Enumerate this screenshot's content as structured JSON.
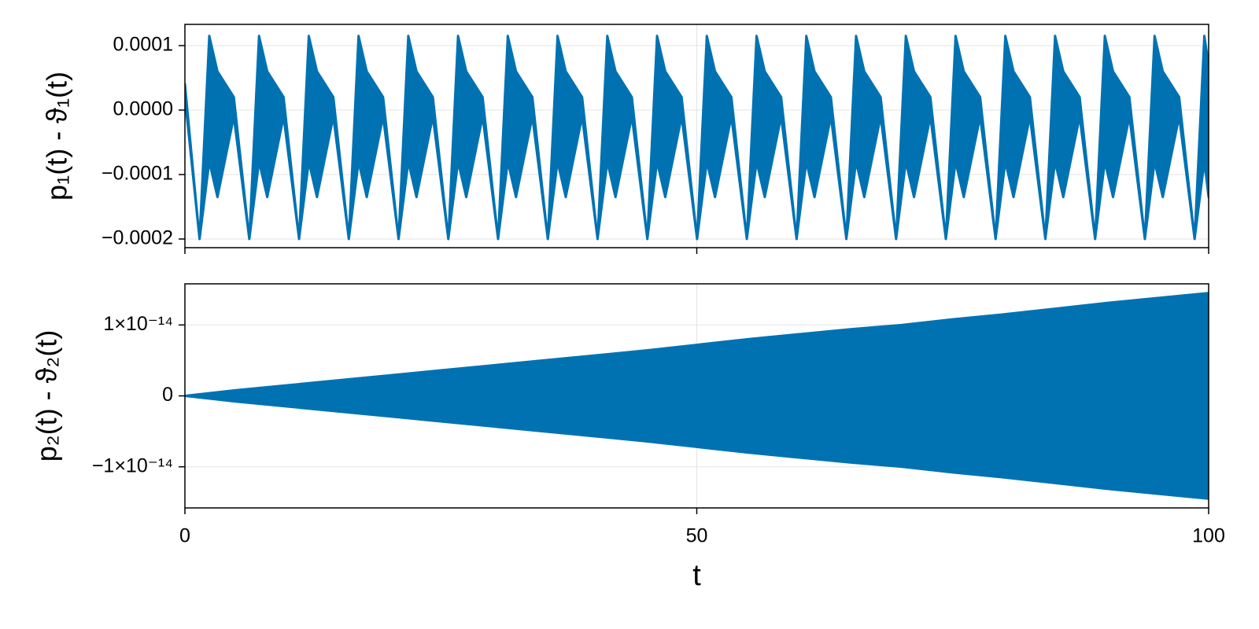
{
  "chart_data": [
    {
      "type": "band",
      "y_label": "p₁(t) - ϑ₁(t)",
      "x": [
        0,
        1.43,
        2.38,
        3.18,
        4.78,
        6.29,
        7.24,
        8.04,
        9.64,
        11.15,
        12.1,
        12.9,
        14.5,
        16.01,
        16.96,
        17.76,
        19.36,
        20.87,
        21.82,
        22.62,
        24.22,
        25.73,
        26.68,
        27.48,
        29.08,
        30.59,
        31.54,
        32.34,
        33.94,
        35.45,
        36.4,
        37.2,
        38.8,
        40.31,
        41.26,
        42.06,
        43.66,
        45.17,
        46.12,
        46.92,
        48.52,
        50.03,
        50.98,
        51.78,
        53.38,
        54.89,
        55.84,
        56.64,
        58.24,
        59.75,
        60.7,
        61.5,
        63.1,
        64.61,
        65.56,
        66.36,
        67.96,
        69.47,
        70.42,
        71.22,
        72.82,
        74.33,
        75.28,
        76.08,
        77.68,
        79.19,
        80.14,
        80.94,
        82.54,
        84.05,
        85.0,
        85.8,
        87.4,
        88.91,
        89.86,
        90.66,
        92.26,
        93.77,
        94.72,
        95.52,
        97.12,
        98.63,
        99.58,
        100
      ],
      "series": [
        {
          "color": "#0072b2",
          "values": [
            4e-05,
            -0.0002,
            0.000115,
            6e-05,
            2e-05,
            -0.0002,
            0.000115,
            6e-05,
            2e-05,
            -0.0002,
            0.000115,
            6e-05,
            2e-05,
            -0.0002,
            0.000115,
            6e-05,
            2e-05,
            -0.0002,
            0.000115,
            6e-05,
            2e-05,
            -0.0002,
            0.000115,
            6e-05,
            2e-05,
            -0.0002,
            0.000115,
            6e-05,
            2e-05,
            -0.0002,
            0.000115,
            6e-05,
            2e-05,
            -0.0002,
            0.000115,
            6e-05,
            2e-05,
            -0.0002,
            0.000115,
            6e-05,
            2e-05,
            -0.0002,
            0.000115,
            6e-05,
            2e-05,
            -0.0002,
            0.000115,
            6e-05,
            2e-05,
            -0.0002,
            0.000115,
            6e-05,
            2e-05,
            -0.0002,
            0.000115,
            6e-05,
            2e-05,
            -0.0002,
            0.000115,
            6e-05,
            2e-05,
            -0.0002,
            0.000115,
            6e-05,
            2e-05,
            -0.0002,
            0.000115,
            6e-05,
            2e-05,
            -0.0002,
            0.000115,
            6e-05,
            2e-05,
            -0.0002,
            0.000115,
            6e-05,
            2e-05,
            -0.0002,
            0.000115,
            6e-05,
            2e-05,
            -0.0002,
            0.000115,
            7e-05
          ]
        },
        {
          "color": "#0072b2",
          "values": [
            2e-05,
            -0.0002,
            -8e-05,
            -0.000135,
            -1e-05,
            -0.0002,
            -8e-05,
            -0.000135,
            -1e-05,
            -0.0002,
            -8e-05,
            -0.000135,
            -1e-05,
            -0.0002,
            -8e-05,
            -0.000135,
            -1e-05,
            -0.0002,
            -8e-05,
            -0.000135,
            -1e-05,
            -0.0002,
            -8e-05,
            -0.000135,
            -1e-05,
            -0.0002,
            -8e-05,
            -0.000135,
            -1e-05,
            -0.0002,
            -8e-05,
            -0.000135,
            -1e-05,
            -0.0002,
            -8e-05,
            -0.000135,
            -1e-05,
            -0.0002,
            -8e-05,
            -0.000135,
            -1e-05,
            -0.0002,
            -8e-05,
            -0.000135,
            -1e-05,
            -0.0002,
            -8e-05,
            -0.000135,
            -1e-05,
            -0.0002,
            -8e-05,
            -0.000135,
            -1e-05,
            -0.0002,
            -8e-05,
            -0.000135,
            -1e-05,
            -0.0002,
            -8e-05,
            -0.000135,
            -1e-05,
            -0.0002,
            -8e-05,
            -0.000135,
            -1e-05,
            -0.0002,
            -8e-05,
            -0.000135,
            -1e-05,
            -0.0002,
            -8e-05,
            -0.000135,
            -1e-05,
            -0.0002,
            -8e-05,
            -0.000135,
            -1e-05,
            -0.0002,
            -8e-05,
            -0.000135,
            -1e-05,
            -0.0002,
            -8e-05,
            -0.000135
          ]
        }
      ],
      "xlim": [
        0,
        100
      ],
      "xticks": [
        0,
        50,
        100
      ],
      "ylim": [
        -0.0002134,
        0.0001329
      ],
      "yticks": [
        {
          "value": -0.0002,
          "label": "−0.0002"
        },
        {
          "value": -0.0001,
          "label": "−0.0001"
        },
        {
          "value": 0,
          "label": "0.0000"
        },
        {
          "value": 0.0001,
          "label": "0.0001"
        }
      ],
      "grid": true
    },
    {
      "type": "band",
      "y_label": "p₂(t) - ϑ₂(t)",
      "x_label": "t",
      "x": [
        0,
        5,
        10,
        15,
        20,
        25,
        30,
        35,
        40,
        45,
        50,
        55,
        60,
        65,
        70,
        75,
        80,
        85,
        90,
        95,
        100
      ],
      "series": [
        {
          "color": "#0072b2",
          "values": [
            0,
            8e-16,
            1.5e-15,
            2.2e-15,
            2.9e-15,
            3.6e-15,
            4.3e-15,
            5e-15,
            5.7e-15,
            6.4e-15,
            7.2e-15,
            8e-15,
            8.7e-15,
            9.4e-15,
            1e-14,
            1.08e-14,
            1.15e-14,
            1.23e-14,
            1.31e-14,
            1.38e-14,
            1.45e-14
          ]
        },
        {
          "color": "#0072b2",
          "values": [
            0,
            -8e-16,
            -1.5e-15,
            -2.2e-15,
            -2.9e-15,
            -3.6e-15,
            -4.3e-15,
            -5e-15,
            -5.7e-15,
            -6.4e-15,
            -7.2e-15,
            -8e-15,
            -8.7e-15,
            -9.4e-15,
            -1e-14,
            -1.08e-14,
            -1.15e-14,
            -1.23e-14,
            -1.31e-14,
            -1.38e-14,
            -1.45e-14
          ]
        }
      ],
      "xlim": [
        0,
        100
      ],
      "xticks": [
        0,
        50,
        100
      ],
      "show_xtick_labels": true,
      "ylim": [
        -1.58e-14,
        1.58e-14
      ],
      "yticks": [
        {
          "value": -1e-14,
          "label": "−1×10⁻¹⁴"
        },
        0,
        {
          "value": 1e-14,
          "label": "1×10⁻¹⁴"
        }
      ],
      "grid": true
    }
  ]
}
